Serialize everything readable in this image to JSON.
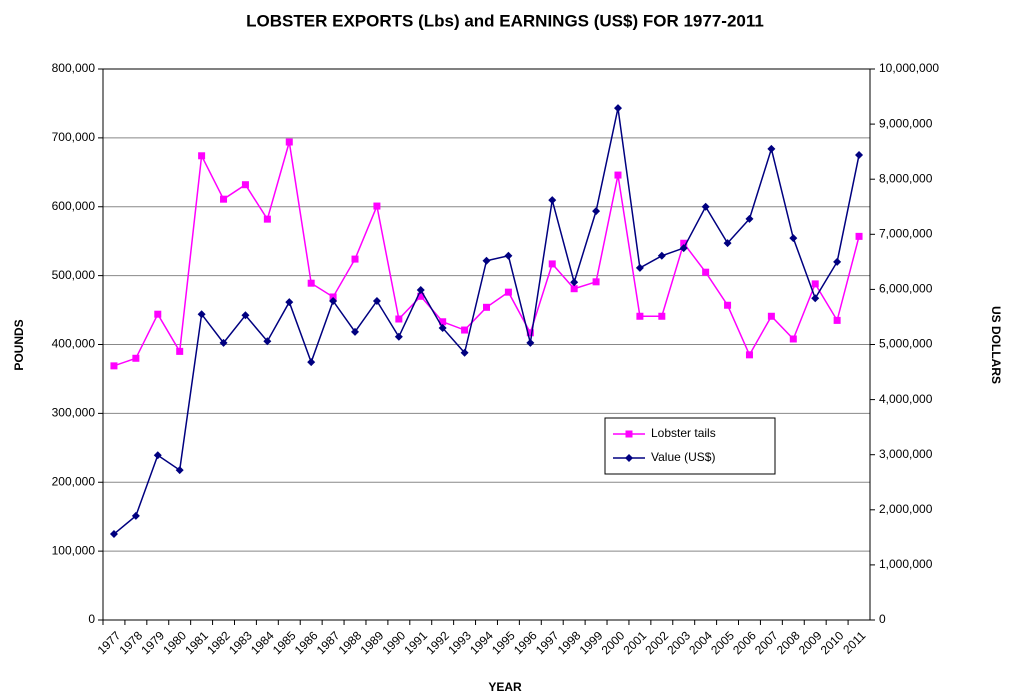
{
  "chart_data": {
    "type": "line",
    "title": "LOBSTER EXPORTS (Lbs) and EARNINGS (US$) FOR 1977-2011",
    "x_label": "YEAR",
    "y_label": "POUNDS",
    "y2_label": "US DOLLARS",
    "categories": [
      "1977",
      "1978",
      "1979",
      "1980",
      "1981",
      "1982",
      "1983",
      "1984",
      "1985",
      "1986",
      "1987",
      "1988",
      "1989",
      "1990",
      "1991",
      "1992",
      "1993",
      "1994",
      "1995",
      "1996",
      "1997",
      "1998",
      "1999",
      "2000",
      "2001",
      "2002",
      "2003",
      "2004",
      "2005",
      "2006",
      "2007",
      "2008",
      "2009",
      "2010",
      "2011"
    ],
    "series": [
      {
        "name": "Lobster tails",
        "color": "#ff00ff",
        "marker": "square",
        "values": [
          369000,
          380000,
          444000,
          390000,
          674000,
          611000,
          632000,
          582000,
          694000,
          489000,
          469000,
          524000,
          601000,
          437000,
          470000,
          433000,
          421000,
          454000,
          476000,
          417000,
          517000,
          481000,
          491000,
          646000,
          441000,
          441000,
          547000,
          505000,
          457000,
          385000,
          441000,
          408000,
          488000,
          435000,
          557000
        ]
      },
      {
        "name": "Value (US$)",
        "color": "#000080",
        "marker": "diamond",
        "axis": "y2",
        "values": [
          1560000,
          1890000,
          2990000,
          2720000,
          5550000,
          5030000,
          5530000,
          5060000,
          5770000,
          4680000,
          5790000,
          5230000,
          5790000,
          5140000,
          5990000,
          5300000,
          4850000,
          6520000,
          6610000,
          5030000,
          7620000,
          6130000,
          7420000,
          9290000,
          6390000,
          6610000,
          6750000,
          7500000,
          6840000,
          7280000,
          8550000,
          6930000,
          5840000,
          6500000,
          8440000
        ]
      }
    ],
    "ylim": [
      0,
      800000
    ],
    "yticks": [
      0,
      {
        "value": 100000,
        "label": "100,000"
      },
      {
        "value": 200000,
        "label": "200,000"
      },
      {
        "value": 300000,
        "label": "300,000"
      },
      {
        "value": 400000,
        "label": "400,000"
      },
      {
        "value": 500000,
        "label": "500,000"
      },
      {
        "value": 600000,
        "label": "600,000"
      },
      {
        "value": 700000,
        "label": "700,000"
      },
      {
        "value": 800000,
        "label": "800,000"
      }
    ],
    "y2lim": [
      0,
      10000000
    ],
    "y2ticks": [
      0,
      {
        "value": 1000000,
        "label": "1,000,000"
      },
      {
        "value": 2000000,
        "label": "2,000,000"
      },
      {
        "value": 3000000,
        "label": "3,000,000"
      },
      {
        "value": 4000000,
        "label": "4,000,000"
      },
      {
        "value": 5000000,
        "label": "5,000,000"
      },
      {
        "value": 6000000,
        "label": "6,000,000"
      },
      {
        "value": 7000000,
        "label": "7,000,000"
      },
      {
        "value": 8000000,
        "label": "8,000,000"
      },
      {
        "value": 9000000,
        "label": "9,000,000"
      },
      {
        "value": 10000000,
        "label": "10,000,000"
      }
    ],
    "grid": true,
    "legend": "lower right"
  }
}
